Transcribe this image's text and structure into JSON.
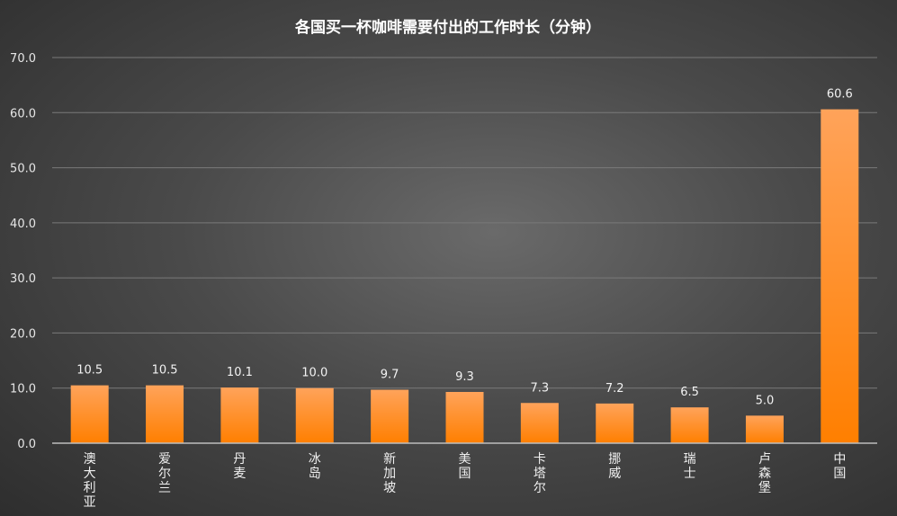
{
  "chart_data": {
    "type": "bar",
    "title": "各国买一杯咖啡需要付出的工作时长（分钟）",
    "categories": [
      "澳大利亚",
      "爱尔兰",
      "丹麦",
      "冰岛",
      "新加坡",
      "美国",
      "卡塔尔",
      "挪威",
      "瑞士",
      "卢森堡",
      "中国"
    ],
    "values": [
      10.5,
      10.5,
      10.1,
      10.0,
      9.7,
      9.3,
      7.3,
      7.2,
      6.5,
      5.0,
      60.6
    ],
    "value_labels": [
      "10.5",
      "10.5",
      "10.1",
      "10.0",
      "9.7",
      "9.3",
      "7.3",
      "7.2",
      "6.5",
      "5.0",
      "60.6"
    ],
    "ylim": [
      0,
      70
    ],
    "yticks": [
      "0.0",
      "10.0",
      "20.0",
      "30.0",
      "40.0",
      "50.0",
      "60.0",
      "70.0"
    ],
    "xlabel": "",
    "ylabel": "",
    "grid": true,
    "legend": "none",
    "colors": {
      "bar_top": "#ffa35a",
      "bar_bottom": "#ff7f00",
      "background": "#4a4a4a"
    }
  }
}
